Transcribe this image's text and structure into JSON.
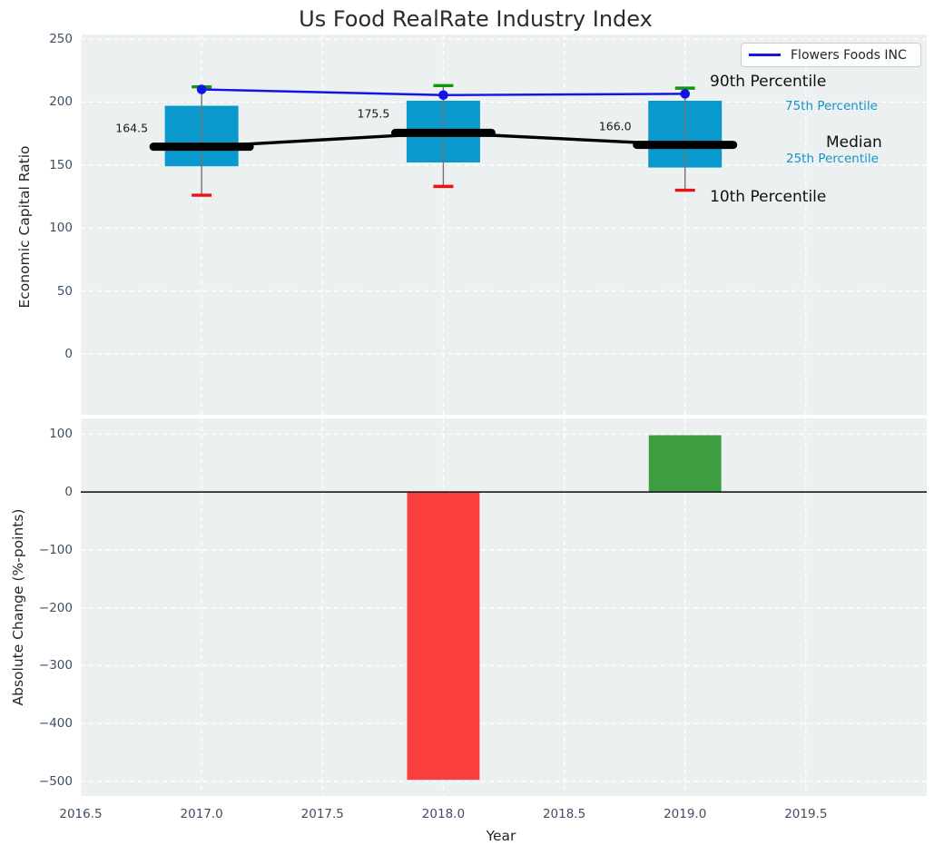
{
  "title": "Us Food RealRate Industry Index",
  "legend": {
    "label": "Flowers Foods INC"
  },
  "percentile_labels": {
    "p90": "90th Percentile",
    "p75": "75th Percentile",
    "median": "Median",
    "p25": "25th Percentile",
    "p10": "10th Percentile"
  },
  "colors": {
    "box_fill": "#0999cc",
    "whisker": "#737373",
    "cap_top": "#0a9a0a",
    "cap_bottom": "#ee1111",
    "company_line": "#1414e6",
    "median_line": "#000000",
    "axes_bg": "#ecf0f1",
    "grid": "#ffffff",
    "tick_text": "#3d4f63",
    "bar_negative": "#fa3d3d",
    "bar_positive": "#3d9e41",
    "percentile_cyan": "#1096c8",
    "annotation_black": "#111111",
    "zero_line": "#1a1a1a"
  },
  "chart_data": [
    {
      "type": "boxplot-with-line",
      "title": "Us Food RealRate Industry Index",
      "ylabel": "Economic Capital Ratio",
      "ylim": [
        -48.3,
        253.6
      ],
      "yticks": {
        "values": [
          0,
          50,
          100,
          150,
          200,
          250
        ],
        "labels": [
          "0",
          "50",
          "100",
          "150",
          "200",
          "250"
        ]
      },
      "categories": [
        2017,
        2018,
        2019
      ],
      "boxes": [
        {
          "year": 2017,
          "p10": 126,
          "p25": 149,
          "median": 164.5,
          "p75": 197,
          "p90": 212,
          "median_label": "164.5"
        },
        {
          "year": 2018,
          "p10": 133,
          "p25": 152,
          "median": 175.5,
          "p75": 201,
          "p90": 213,
          "median_label": "175.5"
        },
        {
          "year": 2019,
          "p10": 130,
          "p25": 148,
          "median": 166.0,
          "p75": 201,
          "p90": 211,
          "median_label": "166.0"
        }
      ],
      "series": [
        {
          "name": "Flowers Foods INC",
          "x": [
            2017,
            2018,
            2019
          ],
          "values": [
            210,
            205.5,
            206.5
          ]
        }
      ],
      "legend_position": "upper right",
      "grid": true
    },
    {
      "type": "bar",
      "ylabel": "Absolute Change (%-points)",
      "xlabel": "Year",
      "ylim": [
        -525,
        127
      ],
      "yticks": {
        "values": [
          100,
          0,
          -100,
          -200,
          -300,
          -400,
          -500
        ],
        "labels": [
          "100",
          "0",
          "−100",
          "−200",
          "−300",
          "−400",
          "−500"
        ]
      },
      "xlim": [
        2016.5,
        2020.0
      ],
      "xticks": {
        "values": [
          2016.5,
          2017.0,
          2017.5,
          2018.0,
          2018.5,
          2019.0,
          2019.5
        ],
        "labels": [
          "2016.5",
          "2017.0",
          "2017.5",
          "2018.0",
          "2018.5",
          "2019.0",
          "2019.5"
        ]
      },
      "x": [
        2018,
        2019
      ],
      "values": [
        -497,
        98
      ],
      "bar_width_years": 0.3,
      "grid": true,
      "zero_line": true
    }
  ]
}
